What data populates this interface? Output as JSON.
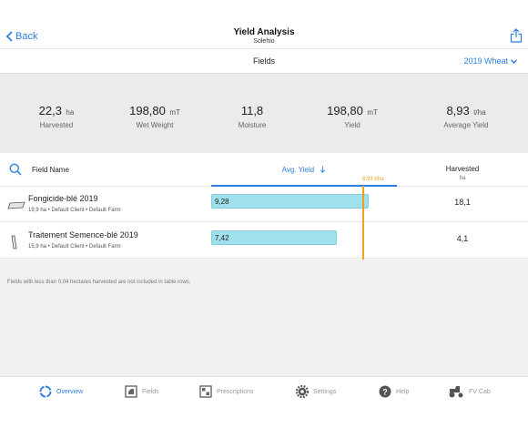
{
  "nav": {
    "back_label": "Back",
    "title": "Yield Analysis",
    "subtitle": "Solehio",
    "share_icon": "share-icon"
  },
  "fieldsbar": {
    "title": "Fields",
    "crop_selector": "2019 Wheat"
  },
  "stats": [
    {
      "value": "22,3",
      "unit": "ha",
      "label": "Harvested"
    },
    {
      "value": "198,80",
      "unit": "mT",
      "label": "Wet Weight"
    },
    {
      "value": "11,8",
      "unit": "",
      "label": "Moisture"
    },
    {
      "value": "198,80",
      "unit": "mT",
      "label": "Yield"
    },
    {
      "value": "8,93",
      "unit": "t/ha",
      "label": "Average Yield"
    }
  ],
  "table": {
    "col_name": "Field Name",
    "col_yield": "Avg. Yield",
    "sort_icon": "arrow-down-icon",
    "col_harvested": "Harvested",
    "col_harvested_unit": "ha",
    "avg_marker_label": "8,93 t/ha",
    "avg_marker_value": 8.93,
    "bar_scale_max": 10.95,
    "rows": [
      {
        "name": "Fongicide-blé 2019",
        "meta": "19,9 ha • Default Client • Default Farm",
        "yield_label": "9,28",
        "yield_value": 9.28,
        "harvested": "18,1"
      },
      {
        "name": "Traitement Semence-blé 2019",
        "meta": "15,9 ha • Default Client • Default Farm",
        "yield_label": "7,42",
        "yield_value": 7.42,
        "harvested": "4,1"
      }
    ]
  },
  "note": "Fields with less than 0,04 hectares harvested are not included in table rows.",
  "tabs": [
    {
      "label": "Overview",
      "icon": "overview-icon",
      "active": true
    },
    {
      "label": "Fields",
      "icon": "fields-icon",
      "active": false
    },
    {
      "label": "Prescriptions",
      "icon": "prescriptions-icon",
      "active": false
    },
    {
      "label": "Settings",
      "icon": "gear-icon",
      "active": false
    },
    {
      "label": "Help",
      "icon": "help-icon",
      "active": false
    },
    {
      "label": "FV Cab",
      "icon": "tractor-icon",
      "active": false
    }
  ],
  "colors": {
    "accent": "#2b7de0",
    "bar": "#9fe0ec",
    "avg_marker": "#f0a020"
  }
}
